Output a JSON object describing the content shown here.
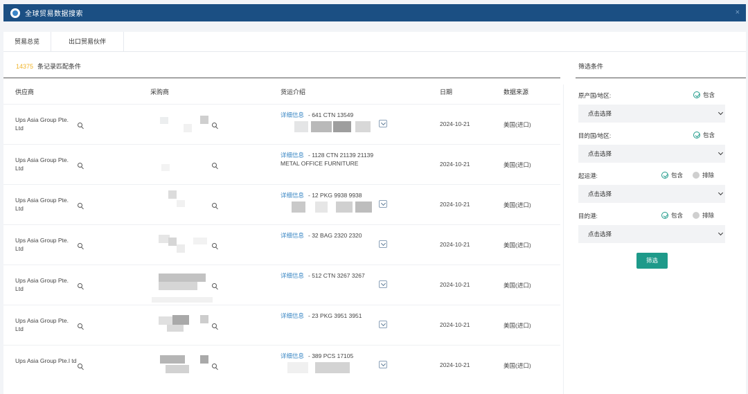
{
  "window": {
    "title": "全球贸易数据搜索",
    "close_label": "×"
  },
  "tabs": [
    {
      "label": "贸易总览"
    },
    {
      "label": "出口贸易伙伴"
    }
  ],
  "results": {
    "count": "14375",
    "count_suffix": "条记录匹配条件"
  },
  "table": {
    "headers": {
      "supplier": "供应商",
      "buyer": "采购商",
      "goods": "货运介绍",
      "date": "日期",
      "source": "数据来源"
    },
    "detail_link": "详细信息",
    "rows": [
      {
        "supplier": "Ups Asia Group Pte. Ltd",
        "goods": "- 641 CTN 13549",
        "date": "2024-10-21",
        "source": "美国(进口)"
      },
      {
        "supplier": "Ups Asia Group Pte. Ltd",
        "goods": "- 1128 CTN 21139 21139 METAL OFFICE FURNITURE",
        "date": "2024-10-21",
        "source": "美国(进口)"
      },
      {
        "supplier": "Ups Asia Group Pte. Ltd",
        "goods": "- 12 PKG 9938 9938",
        "date": "2024-10-21",
        "source": "美国(进口)"
      },
      {
        "supplier": "Ups Asia Group Pte. Ltd",
        "goods": "- 32 BAG 2320 2320",
        "date": "2024-10-21",
        "source": "美国(进口)"
      },
      {
        "supplier": "Ups Asia Group Pte. Ltd",
        "goods": "- 512 CTN 3267 3267",
        "date": "2024-10-21",
        "source": "美国(进口)"
      },
      {
        "supplier": "Ups Asia Group Pte. Ltd",
        "goods": "- 23 PKG 3951 3951",
        "date": "2024-10-21",
        "source": "美国(进口)"
      },
      {
        "supplier": "Ups Asia Group Pte.l td",
        "goods": "- 389 PCS 17105",
        "date": "2024-10-21",
        "source": "美国(进口)"
      }
    ]
  },
  "filters": {
    "title": "筛选条件",
    "include_label": "包含",
    "exclude_label": "排除",
    "select_placeholder": "点击选择",
    "origin_label": "原产国/地区:",
    "dest_country_label": "目的国/地区:",
    "departure_port_label": "起运港:",
    "dest_port_label": "目的港:",
    "apply_label": "筛选"
  },
  "colors": {
    "titlebar": "#1b4f83",
    "accent": "#1e9a8a",
    "link": "#3a87c4",
    "count": "#f0b429"
  }
}
